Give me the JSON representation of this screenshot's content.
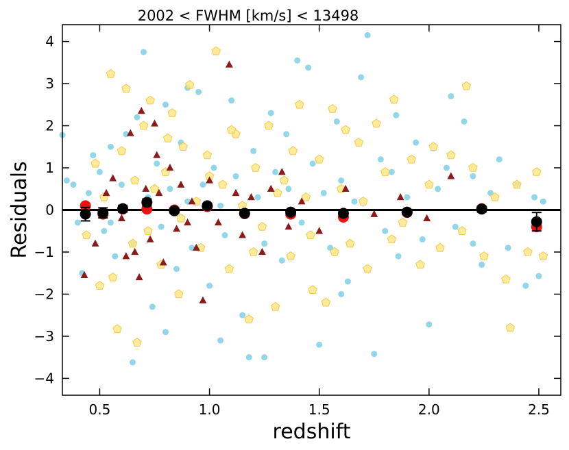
{
  "chart_data": {
    "type": "scatter",
    "title": "2002 < FWHM [km/s] < 13498",
    "xlabel": "redshift",
    "ylabel": "Residuals",
    "xlim": [
      0.33,
      2.6
    ],
    "ylim": [
      -4.4,
      4.4
    ],
    "xticks": [
      0.5,
      1.0,
      1.5,
      2.0,
      2.5
    ],
    "yticks": [
      -4,
      -3,
      -2,
      -1,
      0,
      1,
      2,
      3,
      4
    ],
    "xtick_labels": [
      "0.5",
      "1.0",
      "1.5",
      "2.0",
      "2.5"
    ],
    "ytick_labels": [
      "−4",
      "−3",
      "−2",
      "−1",
      "0",
      "1",
      "2",
      "3",
      "4"
    ],
    "reference_line_y": 0,
    "colors": {
      "cyan": "#7fcfe6",
      "yellow": "#ffe680",
      "yellow_edge": "#f2c94c",
      "darkred": "#8b1a1a",
      "red": "#ee1111",
      "black": "#000000"
    },
    "series": [
      {
        "name": "cyan circles",
        "marker": "circle",
        "color": "#7fcfe6",
        "points": [
          [
            0.33,
            1.78
          ],
          [
            0.35,
            0.7
          ],
          [
            0.38,
            0.6
          ],
          [
            0.4,
            -0.3
          ],
          [
            0.42,
            -1.5
          ],
          [
            0.45,
            0.4
          ],
          [
            0.47,
            1.3
          ],
          [
            0.5,
            0.9
          ],
          [
            0.52,
            -0.5
          ],
          [
            0.55,
            1.5
          ],
          [
            0.57,
            -1.1
          ],
          [
            0.6,
            0.6
          ],
          [
            0.62,
            1.8
          ],
          [
            0.65,
            -0.8
          ],
          [
            0.67,
            2.2
          ],
          [
            0.7,
            3.75
          ],
          [
            0.72,
            0.3
          ],
          [
            0.74,
            -2.3
          ],
          [
            0.76,
            1.1
          ],
          [
            0.78,
            -0.4
          ],
          [
            0.8,
            2.5
          ],
          [
            0.82,
            0.5
          ],
          [
            0.85,
            -1.4
          ],
          [
            0.87,
            1.6
          ],
          [
            0.9,
            0.2
          ],
          [
            0.92,
            -0.9
          ],
          [
            0.95,
            2.8
          ],
          [
            0.97,
            0.6
          ],
          [
            1.0,
            -1.8
          ],
          [
            1.02,
            1.0
          ],
          [
            1.05,
            0.1
          ],
          [
            1.07,
            -0.6
          ],
          [
            1.1,
            2.6
          ],
          [
            1.12,
            0.8
          ],
          [
            1.15,
            -2.5
          ],
          [
            1.18,
            -3.5
          ],
          [
            1.2,
            1.4
          ],
          [
            1.22,
            0.3
          ],
          [
            1.25,
            -0.8
          ],
          [
            1.28,
            2.3
          ],
          [
            1.3,
            0.9
          ],
          [
            1.33,
            -1.2
          ],
          [
            1.36,
            0.5
          ],
          [
            1.4,
            3.55
          ],
          [
            1.42,
            -0.3
          ],
          [
            1.45,
            3.38
          ],
          [
            1.47,
            1.1
          ],
          [
            1.5,
            -3.2
          ],
          [
            1.52,
            0.4
          ],
          [
            1.55,
            -0.9
          ],
          [
            1.58,
            2.1
          ],
          [
            1.6,
            0.7
          ],
          [
            1.63,
            -1.7
          ],
          [
            1.66,
            0.2
          ],
          [
            1.69,
            3.15
          ],
          [
            1.72,
            4.15
          ],
          [
            1.75,
            -3.42
          ],
          [
            1.78,
            1.2
          ],
          [
            1.8,
            -0.5
          ],
          [
            1.83,
            0.9
          ],
          [
            1.86,
            -1.1
          ],
          [
            1.9,
            0.3
          ],
          [
            1.94,
            1.6
          ],
          [
            1.97,
            -0.7
          ],
          [
            2.0,
            -2.72
          ],
          [
            2.04,
            0.5
          ],
          [
            2.08,
            1.0
          ],
          [
            2.12,
            -0.4
          ],
          [
            2.16,
            2.1
          ],
          [
            2.2,
            0.8
          ],
          [
            2.24,
            -1.3
          ],
          [
            2.28,
            0.4
          ],
          [
            2.32,
            1.2
          ],
          [
            2.36,
            -0.9
          ],
          [
            2.4,
            0.6
          ],
          [
            2.44,
            -1.8
          ],
          [
            2.48,
            0.3
          ],
          [
            2.5,
            -1.57
          ],
          [
            2.52,
            0.2
          ],
          [
            0.65,
            -3.62
          ],
          [
            0.8,
            -2.9
          ],
          [
            1.05,
            -3.1
          ],
          [
            1.25,
            -3.5
          ],
          [
            0.9,
            2.9
          ],
          [
            1.6,
            -2.0
          ],
          [
            2.2,
            -0.8
          ],
          [
            0.55,
            -0.3
          ],
          [
            1.35,
            1.8
          ],
          [
            1.85,
            2.25
          ],
          [
            2.1,
            2.7
          ]
        ]
      },
      {
        "name": "yellow pentagons",
        "marker": "pentagon",
        "color": "#ffe680",
        "points": [
          [
            0.44,
            -0.6
          ],
          [
            0.48,
            1.1
          ],
          [
            0.52,
            0.3
          ],
          [
            0.55,
            3.23
          ],
          [
            0.58,
            -2.83
          ],
          [
            0.6,
            1.4
          ],
          [
            0.62,
            2.88
          ],
          [
            0.65,
            -0.8
          ],
          [
            0.67,
            -3.15
          ],
          [
            0.7,
            2.0
          ],
          [
            0.73,
            2.6
          ],
          [
            0.75,
            0.5
          ],
          [
            0.78,
            -1.3
          ],
          [
            0.8,
            0.9
          ],
          [
            0.83,
            2.3
          ],
          [
            0.86,
            -2.0
          ],
          [
            0.88,
            1.5
          ],
          [
            0.91,
            2.97
          ],
          [
            0.94,
            0.2
          ],
          [
            0.96,
            -0.9
          ],
          [
            0.99,
            1.3
          ],
          [
            1.03,
            3.77
          ],
          [
            1.06,
            0.6
          ],
          [
            1.09,
            -1.4
          ],
          [
            1.12,
            1.8
          ],
          [
            1.15,
            0.1
          ],
          [
            1.18,
            -2.6
          ],
          [
            1.21,
            1.0
          ],
          [
            1.24,
            -0.4
          ],
          [
            1.27,
            2.0
          ],
          [
            1.3,
            -2.3
          ],
          [
            1.34,
            0.7
          ],
          [
            1.37,
            -1.1
          ],
          [
            1.41,
            2.5
          ],
          [
            1.44,
            0.3
          ],
          [
            1.47,
            -1.9
          ],
          [
            1.5,
            1.2
          ],
          [
            1.53,
            -2.2
          ],
          [
            1.56,
            2.4
          ],
          [
            1.6,
            0.5
          ],
          [
            1.64,
            -0.8
          ],
          [
            1.68,
            1.6
          ],
          [
            1.72,
            -1.4
          ],
          [
            1.76,
            2.05
          ],
          [
            1.8,
            0.9
          ],
          [
            1.84,
            2.62
          ],
          [
            1.88,
            -0.3
          ],
          [
            1.92,
            1.2
          ],
          [
            1.96,
            -1.3
          ],
          [
            2.0,
            0.6
          ],
          [
            2.05,
            -0.9
          ],
          [
            2.1,
            1.3
          ],
          [
            2.15,
            -0.5
          ],
          [
            2.17,
            2.94
          ],
          [
            2.2,
            1.0
          ],
          [
            2.25,
            -1.1
          ],
          [
            2.3,
            0.3
          ],
          [
            2.35,
            -1.65
          ],
          [
            2.37,
            -2.8
          ],
          [
            2.4,
            0.6
          ],
          [
            2.45,
            -1.0
          ],
          [
            2.49,
            0.9
          ],
          [
            2.52,
            -1.1
          ],
          [
            0.5,
            -1.8
          ],
          [
            0.56,
            -1.6
          ],
          [
            0.66,
            0.7
          ],
          [
            0.72,
            -0.5
          ],
          [
            0.81,
            1.7
          ],
          [
            0.87,
            -0.2
          ],
          [
            1.0,
            0.8
          ],
          [
            1.1,
            1.9
          ],
          [
            1.2,
            -1.0
          ],
          [
            1.31,
            0.4
          ],
          [
            1.38,
            1.4
          ],
          [
            1.46,
            -0.6
          ],
          [
            1.57,
            -1.0
          ],
          [
            1.62,
            1.9
          ],
          [
            1.7,
            0.2
          ],
          [
            1.83,
            -0.7
          ],
          [
            2.02,
            1.5
          ]
        ]
      },
      {
        "name": "dark red triangles",
        "marker": "triangle",
        "color": "#8b1a1a",
        "points": [
          [
            0.43,
            -1.55
          ],
          [
            0.48,
            -0.8
          ],
          [
            0.53,
            0.4
          ],
          [
            0.56,
            0.75
          ],
          [
            0.6,
            -0.2
          ],
          [
            0.64,
            1.82
          ],
          [
            0.66,
            -1.0
          ],
          [
            0.69,
            2.35
          ],
          [
            0.71,
            0.5
          ],
          [
            0.73,
            -0.7
          ],
          [
            0.75,
            2.05
          ],
          [
            0.77,
            0.4
          ],
          [
            0.79,
            -1.25
          ],
          [
            0.82,
            1.0
          ],
          [
            0.85,
            -0.45
          ],
          [
            0.87,
            0.6
          ],
          [
            0.9,
            -0.3
          ],
          [
            0.92,
            0.2
          ],
          [
            0.94,
            -0.9
          ],
          [
            0.97,
            -2.15
          ],
          [
            1.0,
            0.7
          ],
          [
            1.04,
            -0.3
          ],
          [
            1.09,
            3.45
          ],
          [
            1.12,
            0.4
          ],
          [
            1.15,
            -0.6
          ],
          [
            1.19,
            0.3
          ],
          [
            1.24,
            -1.0
          ],
          [
            1.28,
            0.5
          ],
          [
            1.33,
            0.9
          ],
          [
            1.36,
            -0.4
          ],
          [
            1.42,
            0.2
          ],
          [
            1.5,
            -0.5
          ],
          [
            1.62,
            0.5
          ],
          [
            1.75,
            -0.1
          ],
          [
            1.87,
            0.3
          ],
          [
            1.99,
            -0.2
          ],
          [
            2.1,
            0.8
          ],
          [
            0.62,
            -1.1
          ],
          [
            0.68,
            -1.6
          ],
          [
            0.76,
            1.3
          ]
        ]
      },
      {
        "name": "red large circles",
        "marker": "circle-large",
        "color": "#ee1111",
        "points": [
          [
            0.435,
            0.1
          ],
          [
            0.515,
            -0.1
          ],
          [
            0.605,
            0.02
          ],
          [
            0.715,
            0.02
          ],
          [
            0.84,
            0.0
          ],
          [
            0.99,
            0.08
          ],
          [
            1.16,
            -0.09
          ],
          [
            1.37,
            -0.1
          ],
          [
            1.61,
            -0.17
          ],
          [
            1.9,
            -0.06
          ],
          [
            2.24,
            0.03
          ],
          [
            2.49,
            -0.4
          ]
        ]
      },
      {
        "name": "black binned means",
        "marker": "circle-errorbar",
        "color": "#000000",
        "points": [
          [
            0.435,
            -0.1,
            0.16
          ],
          [
            0.515,
            -0.07,
            0.12
          ],
          [
            0.605,
            0.03,
            0.08
          ],
          [
            0.715,
            0.18,
            0.08
          ],
          [
            0.84,
            -0.02,
            0.06
          ],
          [
            0.99,
            0.1,
            0.05
          ],
          [
            1.16,
            -0.08,
            0.05
          ],
          [
            1.37,
            -0.05,
            0.06
          ],
          [
            1.61,
            -0.08,
            0.07
          ],
          [
            1.9,
            -0.05,
            0.06
          ],
          [
            2.24,
            0.02,
            0.07
          ],
          [
            2.49,
            -0.28,
            0.22
          ]
        ]
      }
    ]
  }
}
